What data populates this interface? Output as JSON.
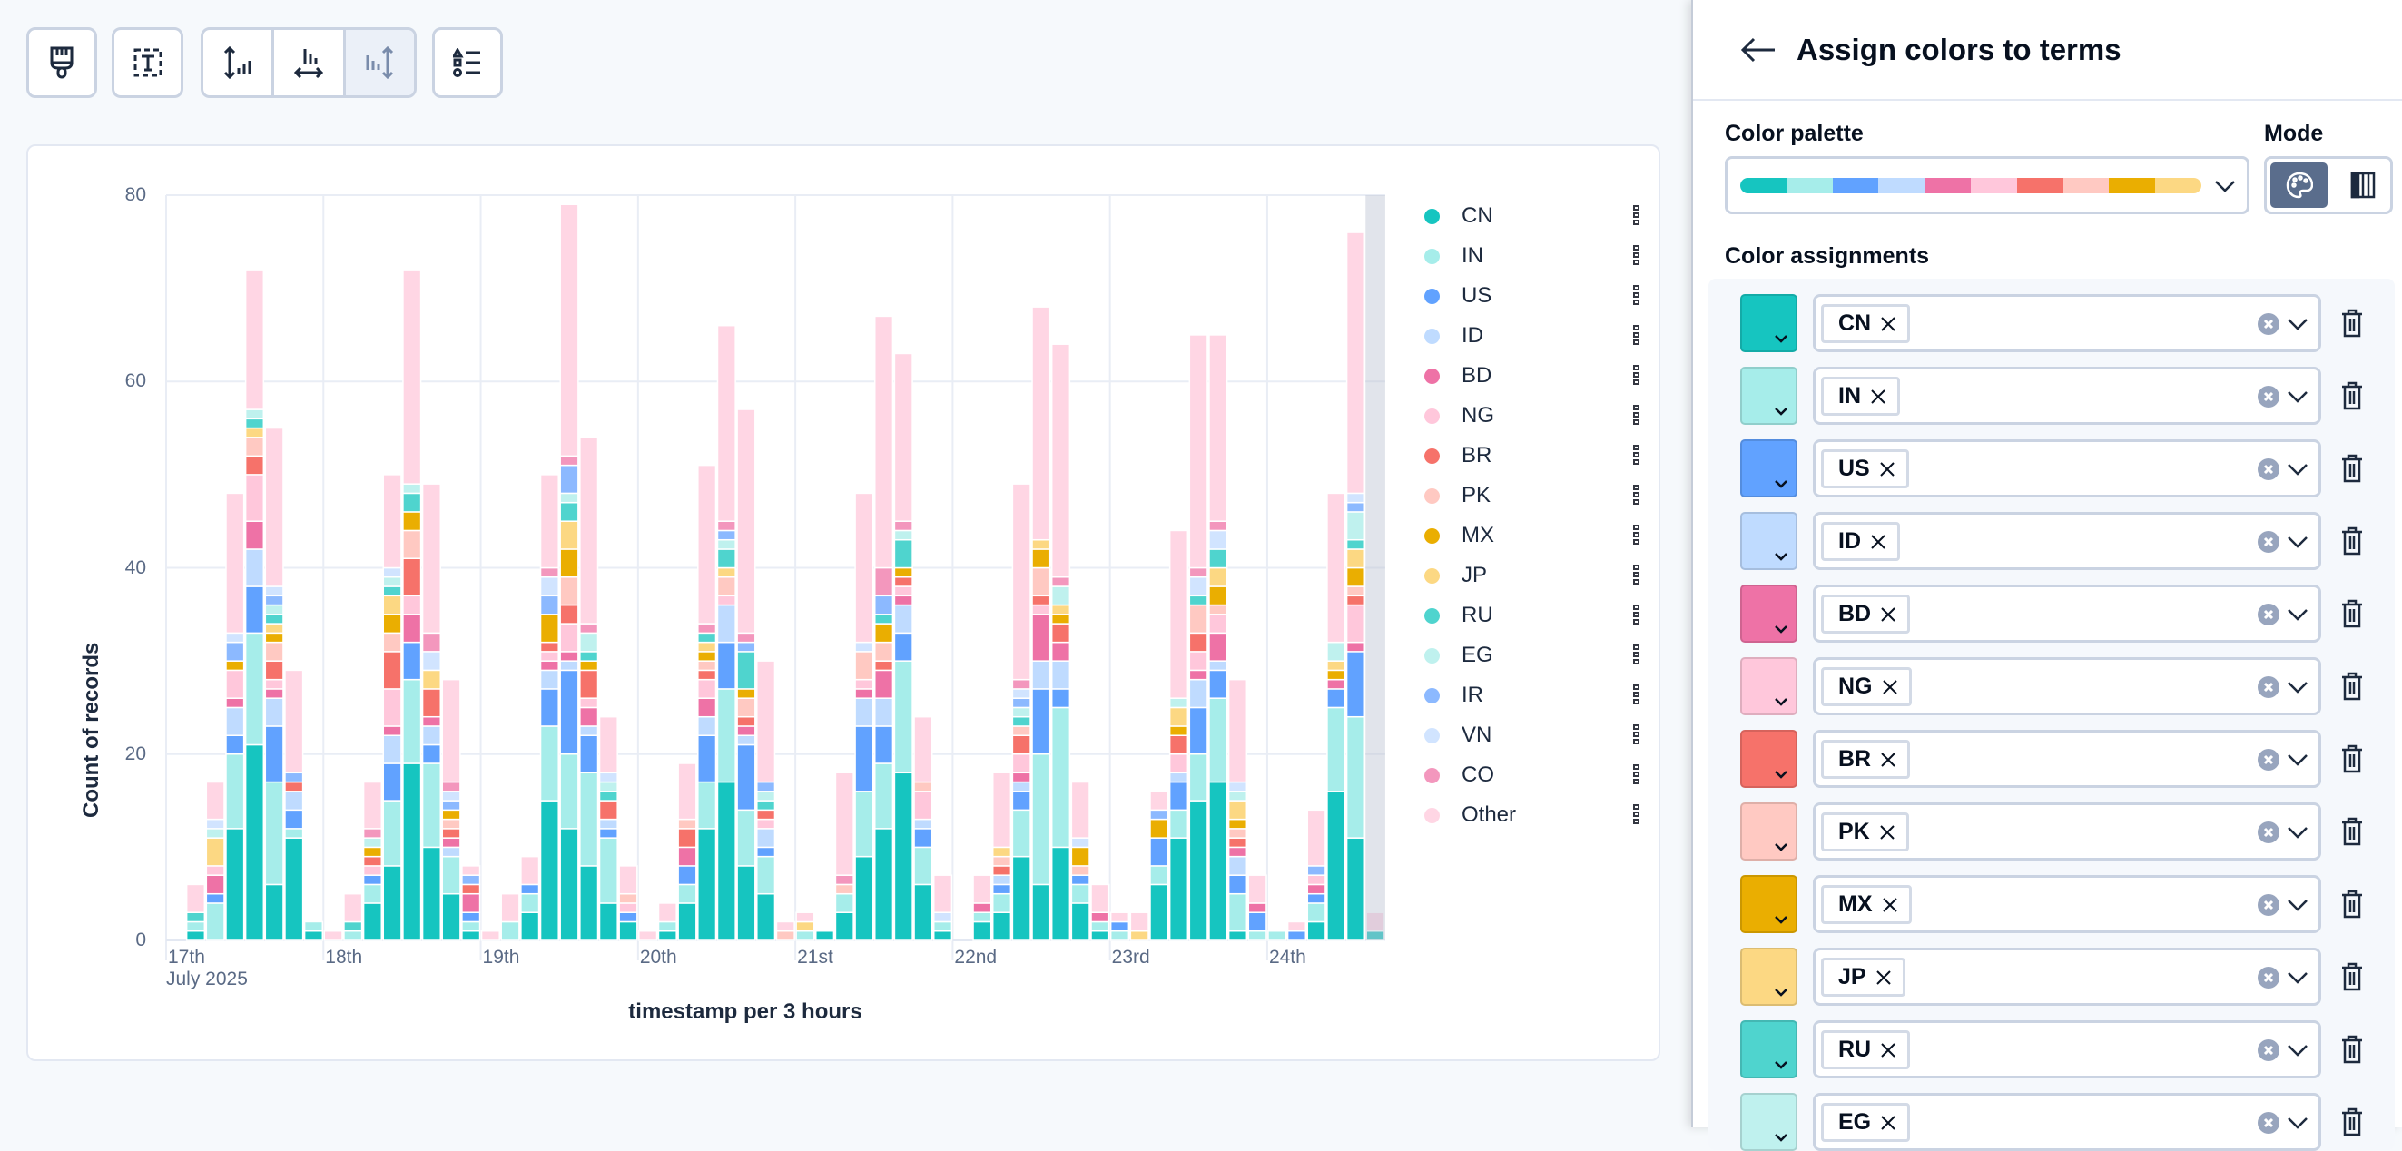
{
  "toolbar": {
    "buttons": [
      {
        "name": "appearance",
        "icon": "paintbrush-icon"
      },
      {
        "name": "titles-and-text",
        "icon": "text-box-icon"
      },
      {
        "name": "left-axis",
        "icon": "vertical-axis-icon"
      },
      {
        "name": "bottom-axis",
        "icon": "horizontal-axis-icon"
      },
      {
        "name": "right-axis",
        "icon": "right-axis-icon",
        "state": "disabled"
      },
      {
        "name": "legend",
        "icon": "legend-list-icon"
      }
    ]
  },
  "chart_data": {
    "type": "bar",
    "stacked": true,
    "xlabel": "timestamp per 3 hours",
    "ylabel": "Count of records",
    "ylim": [
      0,
      80
    ],
    "yticks": [
      0,
      20,
      40,
      60,
      80
    ],
    "grid": true,
    "legend_position": "right",
    "x_tick_labels": [
      "17th",
      "18th",
      "19th",
      "20th",
      "21st",
      "22nd",
      "23rd",
      "24th"
    ],
    "x_sub_label": "July 2025",
    "interval": "3 hours",
    "partial_last_bucket": true,
    "categories": [
      "2025-07-17 00:00",
      "2025-07-17 03:00",
      "2025-07-17 06:00",
      "2025-07-17 09:00",
      "2025-07-17 12:00",
      "2025-07-17 15:00",
      "2025-07-17 18:00",
      "2025-07-17 21:00",
      "2025-07-18 00:00",
      "2025-07-18 03:00",
      "2025-07-18 06:00",
      "2025-07-18 09:00",
      "2025-07-18 12:00",
      "2025-07-18 15:00",
      "2025-07-18 18:00",
      "2025-07-18 21:00",
      "2025-07-19 00:00",
      "2025-07-19 03:00",
      "2025-07-19 06:00",
      "2025-07-19 09:00",
      "2025-07-19 12:00",
      "2025-07-19 15:00",
      "2025-07-19 18:00",
      "2025-07-19 21:00",
      "2025-07-20 00:00",
      "2025-07-20 03:00",
      "2025-07-20 06:00",
      "2025-07-20 09:00",
      "2025-07-20 12:00",
      "2025-07-20 15:00",
      "2025-07-20 18:00",
      "2025-07-20 21:00",
      "2025-07-21 00:00",
      "2025-07-21 03:00",
      "2025-07-21 06:00",
      "2025-07-21 09:00",
      "2025-07-21 12:00",
      "2025-07-21 15:00",
      "2025-07-21 18:00",
      "2025-07-21 21:00",
      "2025-07-22 00:00",
      "2025-07-22 03:00",
      "2025-07-22 06:00",
      "2025-07-22 09:00",
      "2025-07-22 12:00",
      "2025-07-22 15:00",
      "2025-07-22 18:00",
      "2025-07-22 21:00",
      "2025-07-23 00:00",
      "2025-07-23 03:00",
      "2025-07-23 06:00",
      "2025-07-23 09:00",
      "2025-07-23 12:00",
      "2025-07-23 15:00",
      "2025-07-23 18:00",
      "2025-07-23 21:00",
      "2025-07-24 00:00",
      "2025-07-24 03:00",
      "2025-07-24 06:00",
      "2025-07-24 09:00",
      "2025-07-24 12:00",
      "2025-07-24 15:00"
    ],
    "series": [
      {
        "name": "CN",
        "color": "#16C5C0",
        "values": [
          0,
          1,
          0,
          12,
          21,
          6,
          11,
          1,
          0,
          0,
          4,
          8,
          19,
          10,
          5,
          1,
          0,
          0,
          3,
          15,
          12,
          8,
          4,
          2,
          0,
          1,
          4,
          12,
          17,
          8,
          5,
          0,
          0,
          1,
          3,
          9,
          12,
          18,
          6,
          1,
          0,
          2,
          3,
          9,
          6,
          10,
          4,
          1,
          0,
          0,
          6,
          11,
          15,
          17,
          1,
          0,
          0,
          0,
          2,
          16,
          11,
          1
        ]
      },
      {
        "name": "IN",
        "color": "#A6EDEA",
        "values": [
          0,
          1,
          4,
          8,
          12,
          11,
          1,
          1,
          0,
          1,
          2,
          7,
          9,
          9,
          4,
          1,
          0,
          2,
          2,
          8,
          8,
          10,
          7,
          0,
          0,
          1,
          2,
          5,
          10,
          6,
          4,
          0,
          1,
          0,
          2,
          7,
          7,
          12,
          4,
          1,
          0,
          1,
          2,
          5,
          14,
          15,
          2,
          1,
          1,
          0,
          2,
          3,
          5,
          9,
          4,
          1,
          1,
          0,
          2,
          9,
          13,
          0
        ]
      },
      {
        "name": "US",
        "color": "#61A2FF",
        "values": [
          0,
          0,
          1,
          2,
          5,
          6,
          2,
          0,
          0,
          0,
          1,
          4,
          4,
          2,
          0,
          1,
          0,
          0,
          1,
          4,
          9,
          4,
          1,
          1,
          0,
          0,
          2,
          5,
          5,
          7,
          1,
          0,
          0,
          0,
          0,
          7,
          4,
          3,
          2,
          0,
          0,
          0,
          1,
          2,
          7,
          2,
          1,
          0,
          1,
          0,
          3,
          3,
          5,
          3,
          2,
          2,
          0,
          1,
          1,
          2,
          7,
          0
        ]
      },
      {
        "name": "ID",
        "color": "#BFDBFF",
        "values": [
          0,
          0,
          0,
          3,
          4,
          3,
          2,
          0,
          0,
          0,
          0,
          3,
          0,
          2,
          1,
          0,
          0,
          0,
          0,
          2,
          1,
          1,
          1,
          0,
          0,
          0,
          0,
          2,
          4,
          1,
          2,
          0,
          0,
          0,
          0,
          3,
          3,
          3,
          1,
          0,
          0,
          0,
          1,
          1,
          3,
          3,
          0,
          0,
          0,
          0,
          0,
          1,
          3,
          1,
          2,
          0,
          0,
          0,
          0,
          0,
          0,
          0
        ]
      },
      {
        "name": "BD",
        "color": "#EE72A6",
        "values": [
          0,
          0,
          2,
          1,
          3,
          1,
          0,
          0,
          0,
          0,
          0,
          1,
          3,
          1,
          1,
          2,
          0,
          0,
          0,
          1,
          1,
          2,
          0,
          0,
          0,
          0,
          2,
          2,
          0,
          1,
          0,
          0,
          0,
          0,
          0,
          1,
          3,
          1,
          0,
          0,
          0,
          1,
          0,
          1,
          5,
          2,
          0,
          1,
          0,
          0,
          0,
          0,
          1,
          3,
          1,
          1,
          0,
          0,
          1,
          1,
          1,
          0
        ]
      },
      {
        "name": "NG",
        "color": "#FFC7DB",
        "values": [
          0,
          0,
          1,
          3,
          5,
          1,
          0,
          0,
          0,
          0,
          1,
          4,
          2,
          0,
          0,
          0,
          0,
          0,
          0,
          1,
          3,
          1,
          0,
          1,
          0,
          0,
          0,
          2,
          1,
          0,
          1,
          0,
          0,
          0,
          0,
          1,
          0,
          1,
          3,
          0,
          0,
          0,
          0,
          2,
          1,
          0,
          0,
          0,
          0,
          0,
          0,
          2,
          2,
          2,
          0,
          0,
          0,
          0,
          1,
          0,
          4,
          0
        ]
      },
      {
        "name": "BR",
        "color": "#F6726A",
        "values": [
          0,
          0,
          0,
          0,
          2,
          2,
          1,
          0,
          0,
          0,
          1,
          4,
          4,
          3,
          1,
          1,
          0,
          0,
          0,
          1,
          2,
          3,
          2,
          0,
          0,
          0,
          2,
          1,
          0,
          1,
          1,
          0,
          0,
          0,
          0,
          0,
          1,
          1,
          0,
          0,
          0,
          0,
          1,
          2,
          1,
          2,
          0,
          0,
          0,
          0,
          0,
          2,
          2,
          0,
          1,
          0,
          0,
          0,
          0,
          0,
          1,
          0
        ]
      },
      {
        "name": "PK",
        "color": "#FFC9C2",
        "values": [
          0,
          0,
          0,
          0,
          2,
          2,
          0,
          0,
          0,
          0,
          0,
          2,
          3,
          0,
          1,
          0,
          0,
          0,
          0,
          0,
          3,
          0,
          0,
          1,
          0,
          0,
          1,
          1,
          2,
          2,
          0,
          1,
          0,
          0,
          1,
          3,
          2,
          0,
          1,
          0,
          0,
          0,
          1,
          1,
          3,
          0,
          1,
          0,
          0,
          0,
          0,
          0,
          3,
          1,
          1,
          0,
          0,
          0,
          0,
          0,
          1,
          0
        ]
      },
      {
        "name": "MX",
        "color": "#EAAE01",
        "values": [
          0,
          0,
          0,
          1,
          0,
          1,
          0,
          0,
          0,
          0,
          1,
          2,
          2,
          0,
          1,
          0,
          0,
          0,
          0,
          3,
          3,
          1,
          0,
          0,
          0,
          0,
          0,
          1,
          0,
          1,
          0,
          0,
          0,
          0,
          0,
          0,
          2,
          1,
          0,
          0,
          0,
          0,
          0,
          0,
          2,
          1,
          2,
          0,
          0,
          0,
          2,
          1,
          0,
          2,
          1,
          0,
          0,
          0,
          0,
          1,
          2,
          0
        ]
      },
      {
        "name": "JP",
        "color": "#FCD883",
        "values": [
          0,
          0,
          3,
          0,
          1,
          1,
          0,
          0,
          0,
          0,
          0,
          2,
          0,
          2,
          0,
          0,
          0,
          0,
          0,
          0,
          3,
          0,
          0,
          0,
          0,
          0,
          0,
          1,
          1,
          0,
          0,
          0,
          1,
          0,
          0,
          0,
          0,
          0,
          0,
          0,
          0,
          0,
          1,
          0,
          1,
          1,
          0,
          0,
          0,
          1,
          0,
          2,
          0,
          2,
          2,
          0,
          0,
          0,
          0,
          1,
          2,
          0
        ]
      },
      {
        "name": "RU",
        "color": "#4FD4CE",
        "values": [
          0,
          1,
          0,
          0,
          1,
          1,
          0,
          0,
          0,
          1,
          0,
          1,
          2,
          0,
          0,
          0,
          0,
          0,
          0,
          0,
          2,
          1,
          1,
          0,
          0,
          0,
          0,
          1,
          2,
          4,
          1,
          0,
          0,
          0,
          0,
          0,
          1,
          3,
          0,
          0,
          0,
          0,
          0,
          1,
          0,
          0,
          0,
          0,
          0,
          0,
          0,
          0,
          1,
          2,
          0,
          0,
          0,
          0,
          0,
          0,
          1,
          0
        ]
      },
      {
        "name": "EG",
        "color": "#BFF1EE",
        "values": [
          0,
          0,
          1,
          0,
          1,
          1,
          0,
          0,
          0,
          0,
          1,
          1,
          1,
          0,
          0,
          0,
          0,
          0,
          0,
          0,
          1,
          2,
          1,
          0,
          0,
          0,
          0,
          0,
          1,
          0,
          1,
          0,
          0,
          0,
          0,
          0,
          0,
          1,
          0,
          0,
          0,
          0,
          0,
          1,
          0,
          2,
          0,
          0,
          0,
          0,
          0,
          1,
          0,
          0,
          1,
          0,
          0,
          0,
          0,
          2,
          3,
          0
        ]
      },
      {
        "name": "IR",
        "color": "#8CB9FF",
        "values": [
          0,
          0,
          0,
          2,
          0,
          1,
          1,
          0,
          0,
          0,
          0,
          0,
          0,
          0,
          1,
          1,
          0,
          0,
          0,
          2,
          3,
          0,
          0,
          0,
          0,
          0,
          0,
          0,
          1,
          1,
          1,
          0,
          0,
          0,
          0,
          0,
          2,
          0,
          0,
          0,
          0,
          0,
          0,
          1,
          0,
          0,
          0,
          0,
          0,
          0,
          1,
          0,
          0,
          0,
          0,
          0,
          0,
          0,
          1,
          0,
          1,
          0
        ]
      },
      {
        "name": "VN",
        "color": "#D1E4FF",
        "values": [
          0,
          0,
          1,
          1,
          0,
          1,
          0,
          0,
          0,
          0,
          0,
          1,
          0,
          2,
          1,
          0,
          0,
          0,
          0,
          2,
          0,
          0,
          1,
          0,
          0,
          0,
          0,
          0,
          0,
          0,
          0,
          0,
          0,
          0,
          0,
          1,
          0,
          0,
          0,
          1,
          0,
          0,
          0,
          1,
          0,
          0,
          1,
          0,
          0,
          0,
          0,
          0,
          2,
          2,
          1,
          0,
          0,
          0,
          0,
          0,
          1,
          0
        ]
      },
      {
        "name": "CO",
        "color": "#F397BD",
        "values": [
          0,
          0,
          0,
          0,
          0,
          0,
          0,
          0,
          0,
          0,
          1,
          0,
          0,
          2,
          1,
          0,
          0,
          0,
          0,
          1,
          1,
          1,
          0,
          0,
          0,
          0,
          0,
          1,
          1,
          1,
          0,
          0,
          0,
          0,
          1,
          0,
          3,
          1,
          0,
          0,
          0,
          0,
          0,
          1,
          0,
          1,
          0,
          0,
          0,
          0,
          0,
          0,
          1,
          1,
          0,
          0,
          0,
          0,
          0,
          0,
          0,
          0
        ]
      },
      {
        "name": "Other",
        "color": "#FFD6E4",
        "values": [
          0,
          3,
          4,
          15,
          15,
          17,
          11,
          0,
          1,
          3,
          5,
          10,
          23,
          16,
          11,
          1,
          1,
          3,
          3,
          10,
          27,
          20,
          6,
          3,
          1,
          2,
          6,
          17,
          21,
          24,
          13,
          1,
          1,
          0,
          11,
          16,
          27,
          18,
          7,
          4,
          0,
          3,
          8,
          21,
          25,
          25,
          6,
          3,
          1,
          2,
          2,
          18,
          25,
          20,
          11,
          3,
          0,
          1,
          6,
          16,
          28,
          2
        ]
      }
    ]
  },
  "flyout": {
    "back_icon": "arrow-left-icon",
    "title": "Assign colors to terms",
    "palette_label": "Color palette",
    "palette_colors": [
      "#16C5C0",
      "#A6EDEA",
      "#61A2FF",
      "#BFDBFF",
      "#EE72A6",
      "#FFC7DB",
      "#F6726A",
      "#FFC9C2",
      "#EAAE01",
      "#FCD883"
    ],
    "mode_label": "Mode",
    "mode_options": [
      {
        "icon": "palette-icon",
        "selected": true
      },
      {
        "icon": "gradient-columns-icon",
        "selected": false
      }
    ],
    "assignments_label": "Color assignments",
    "assignments": [
      {
        "term": "CN",
        "color": "#16C5C0"
      },
      {
        "term": "IN",
        "color": "#A6EDEA"
      },
      {
        "term": "US",
        "color": "#61A2FF"
      },
      {
        "term": "ID",
        "color": "#BFDBFF"
      },
      {
        "term": "BD",
        "color": "#EE72A6"
      },
      {
        "term": "NG",
        "color": "#FFC7DB"
      },
      {
        "term": "BR",
        "color": "#F6726A"
      },
      {
        "term": "PK",
        "color": "#FFC9C2"
      },
      {
        "term": "MX",
        "color": "#EAAE01"
      },
      {
        "term": "JP",
        "color": "#FCD883"
      },
      {
        "term": "RU",
        "color": "#4FD4CE"
      },
      {
        "term": "EG",
        "color": "#BFF1EE"
      }
    ]
  }
}
